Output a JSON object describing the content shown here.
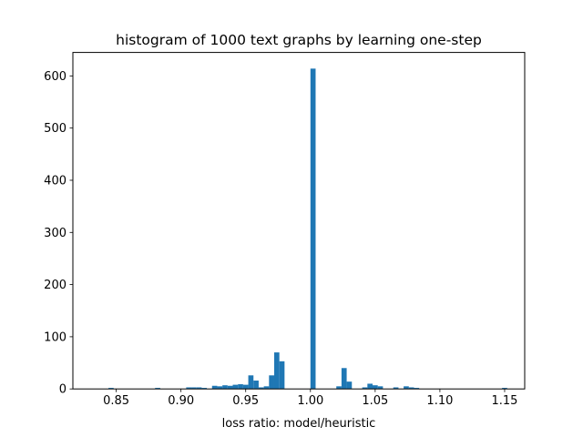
{
  "chart_data": {
    "type": "bar",
    "title": "histogram of 1000 text graphs by learning one-step",
    "xlabel": "loss ratio: model/heuristic",
    "ylabel": "",
    "xlim": [
      0.8165,
      1.1655
    ],
    "ylim": [
      0,
      645
    ],
    "bin_width": 0.004,
    "color": "#1f77b4",
    "x_ticks": [
      0.85,
      0.9,
      0.95,
      1.0,
      1.05,
      1.1,
      1.15
    ],
    "x_tick_labels": [
      "0.85",
      "0.90",
      "0.95",
      "1.00",
      "1.05",
      "1.10",
      "1.15"
    ],
    "y_ticks": [
      0,
      100,
      200,
      300,
      400,
      500,
      600
    ],
    "y_tick_labels": [
      "0",
      "100",
      "200",
      "300",
      "400",
      "500",
      "600"
    ],
    "bins": [
      {
        "x": 0.844,
        "count": 2
      },
      {
        "x": 0.88,
        "count": 2
      },
      {
        "x": 0.904,
        "count": 3
      },
      {
        "x": 0.908,
        "count": 3
      },
      {
        "x": 0.912,
        "count": 3
      },
      {
        "x": 0.916,
        "count": 2
      },
      {
        "x": 0.924,
        "count": 6
      },
      {
        "x": 0.928,
        "count": 5
      },
      {
        "x": 0.932,
        "count": 7
      },
      {
        "x": 0.936,
        "count": 6
      },
      {
        "x": 0.94,
        "count": 8
      },
      {
        "x": 0.944,
        "count": 9
      },
      {
        "x": 0.948,
        "count": 8
      },
      {
        "x": 0.952,
        "count": 26
      },
      {
        "x": 0.956,
        "count": 16
      },
      {
        "x": 0.96,
        "count": 3
      },
      {
        "x": 0.964,
        "count": 5
      },
      {
        "x": 0.968,
        "count": 26
      },
      {
        "x": 0.972,
        "count": 70
      },
      {
        "x": 0.976,
        "count": 53
      },
      {
        "x": 1.0,
        "count": 614
      },
      {
        "x": 1.02,
        "count": 5
      },
      {
        "x": 1.024,
        "count": 40
      },
      {
        "x": 1.028,
        "count": 14
      },
      {
        "x": 1.04,
        "count": 3
      },
      {
        "x": 1.044,
        "count": 10
      },
      {
        "x": 1.048,
        "count": 7
      },
      {
        "x": 1.052,
        "count": 5
      },
      {
        "x": 1.064,
        "count": 3
      },
      {
        "x": 1.072,
        "count": 5
      },
      {
        "x": 1.076,
        "count": 3
      },
      {
        "x": 1.08,
        "count": 2
      },
      {
        "x": 1.148,
        "count": 2
      }
    ]
  }
}
